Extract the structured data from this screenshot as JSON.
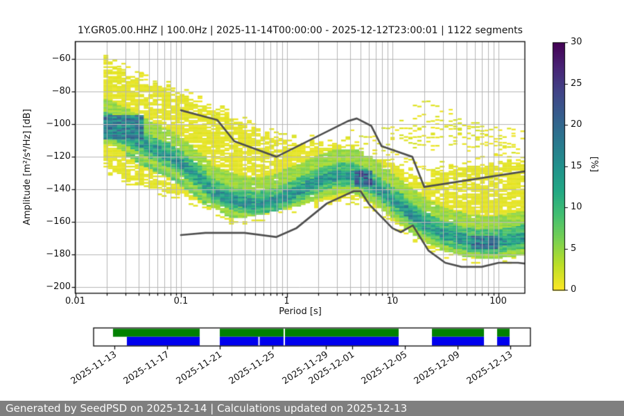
{
  "plot": {
    "title": "1Y.GR05.00.HHZ | 100.0Hz | 2025-11-14T00:00:00 - 2025-12-12T23:00:01 | 1122 segments",
    "xlabel": "Period [s]",
    "ylabel": "Amplitude [m²/s⁴/Hz] [dB]",
    "x_tick_labels": [
      "0.01",
      "0.1",
      "1",
      "10",
      "100"
    ],
    "y_tick_labels": [
      "−60",
      "−80",
      "−100",
      "−120",
      "−140",
      "−160",
      "−180",
      "−200"
    ],
    "colorbar_label": "[%]",
    "colorbar_tick_labels": [
      "0",
      "5",
      "10",
      "15",
      "20",
      "25",
      "30"
    ]
  },
  "footer": {
    "text": "Generated by SeedPSD on 2025-12-14 | Calculations updated on 2025-12-13",
    "bg_color": "#7f7f7f"
  },
  "chart_data": {
    "type": "heatmap",
    "title": "1Y.GR05.00.HHZ | 100.0Hz | 2025-11-14T00:00:00 - 2025-12-12T23:00:01 | 1122 segments",
    "xlabel": "Period [s]",
    "ylabel": "Amplitude [m²/s⁴/Hz] [dB]",
    "x_scale": "log",
    "xlim": [
      0.01,
      179
    ],
    "ylim": [
      -204,
      -49.4
    ],
    "xticks": [
      0.01,
      0.1,
      1,
      10,
      100
    ],
    "yticks": [
      -60,
      -80,
      -100,
      -120,
      -140,
      -160,
      -180,
      -200
    ],
    "grid": true,
    "grid_color": "#b5b5b5",
    "colorbar": {
      "label": "[%]",
      "range": [
        0,
        30
      ],
      "ticks": [
        0,
        5,
        10,
        15,
        20,
        25,
        30
      ],
      "colormap": "viridis_r",
      "stops": [
        [
          0.0,
          "#fde725"
        ],
        [
          0.1,
          "#bddf26"
        ],
        [
          0.2,
          "#7ad151"
        ],
        [
          0.3,
          "#44bf70"
        ],
        [
          0.4,
          "#22a884"
        ],
        [
          0.5,
          "#21918c"
        ],
        [
          0.6,
          "#2a788e"
        ],
        [
          0.7,
          "#355f8d"
        ],
        [
          0.8,
          "#414487"
        ],
        [
          0.9,
          "#482475"
        ],
        [
          1.0,
          "#440154"
        ]
      ]
    },
    "noise_models": {
      "color": "#4f4f4f",
      "high_points": [
        [
          0.1,
          -91.5
        ],
        [
          0.22,
          -97.4
        ],
        [
          0.32,
          -110.5
        ],
        [
          0.8,
          -120.0
        ],
        [
          3.8,
          -98.1
        ],
        [
          4.6,
          -96.5
        ],
        [
          6.3,
          -101.0
        ],
        [
          7.9,
          -113.5
        ],
        [
          15.4,
          -120.0
        ],
        [
          20.0,
          -138.5
        ],
        [
          354.8,
          -126.0
        ]
      ],
      "low_points": [
        [
          0.1,
          -168.0
        ],
        [
          0.17,
          -166.7
        ],
        [
          0.4,
          -166.7
        ],
        [
          0.8,
          -169.2
        ],
        [
          1.24,
          -163.7
        ],
        [
          2.4,
          -148.6
        ],
        [
          4.3,
          -141.1
        ],
        [
          5.0,
          -141.1
        ],
        [
          6.0,
          -149.0
        ],
        [
          10.0,
          -163.8
        ],
        [
          12.0,
          -166.2
        ],
        [
          15.6,
          -162.1
        ],
        [
          21.9,
          -177.5
        ],
        [
          31.6,
          -185.0
        ],
        [
          45.0,
          -187.5
        ],
        [
          70.0,
          -187.5
        ],
        [
          101.0,
          -185.0
        ],
        [
          154.0,
          -185.0
        ],
        [
          328.0,
          -187.5
        ]
      ]
    },
    "ppsd": {
      "periods": [
        0.02,
        0.03,
        0.05,
        0.08,
        0.1,
        0.15,
        0.2,
        0.3,
        0.5,
        0.8,
        1,
        1.5,
        2,
        3,
        4,
        5,
        6,
        8,
        10,
        15,
        20,
        25,
        30,
        50,
        80,
        100,
        150,
        179
      ],
      "top_db": [
        -60,
        -69,
        -75,
        -79,
        -81,
        -87,
        -91,
        -96,
        -103,
        -108,
        -110,
        -111,
        -112,
        -112.5,
        -114,
        -116,
        -119,
        -122.5,
        -124,
        -131,
        -137,
        -131,
        -128,
        -126,
        -124.5,
        -124,
        -124,
        -124
      ],
      "mode_db": [
        -100.5,
        -106,
        -114,
        -120,
        -124,
        -133,
        -141,
        -146,
        -149,
        -146.5,
        -143.5,
        -138.5,
        -134.5,
        -131.5,
        -131,
        -132.5,
        -135,
        -141,
        -146,
        -155,
        -161,
        -164,
        -167,
        -171,
        -172.5,
        -172,
        -170,
        -169
      ],
      "bottom_db": [
        -126,
        -133,
        -139,
        -142,
        -143,
        -148,
        -151,
        -158,
        -156.5,
        -153,
        -152,
        -149,
        -147,
        -146,
        -145.5,
        -146.5,
        -148.5,
        -153,
        -159,
        -167,
        -172,
        -175,
        -177.5,
        -181.5,
        -183,
        -182.5,
        -181,
        -180
      ],
      "base_pct": 1.05,
      "bands": [
        {
          "pct": 4.5,
          "above": 16,
          "below": 11.5
        },
        {
          "pct": 9,
          "above": 7.5,
          "below": 7
        },
        {
          "pct": 14,
          "above": 3,
          "below": 3.5
        }
      ],
      "secondary_ridge": {
        "pct": 7,
        "offset": -12,
        "halfwidth": 1.6,
        "p_range": [
          0.03,
          1.2
        ]
      },
      "cores": [
        {
          "pct": 20,
          "p_range": [
            4.2,
            6.5
          ],
          "top": -129,
          "bottom": -138
        },
        {
          "pct": 18,
          "p_range": [
            55,
            95
          ],
          "top": -168.5,
          "bottom": -176
        },
        {
          "pct": 17,
          "p_range": [
            0.019,
            0.045
          ],
          "top": -95,
          "bottom": -109
        }
      ],
      "streaks": [
        {
          "prob": 0.65,
          "points": [
            [
              7,
              -126
            ],
            [
              9,
              -112
            ],
            [
              12,
              -99
            ],
            [
              16,
              -90
            ],
            [
              21,
              -85.5
            ],
            [
              28,
              -90
            ],
            [
              40,
              -97
            ],
            [
              60,
              -103
            ],
            [
              100,
              -109
            ],
            [
              179,
              -114
            ]
          ]
        },
        {
          "prob": 0.5,
          "points": [
            [
              8,
              -127
            ],
            [
              11,
              -110
            ],
            [
              15,
              -99
            ],
            [
              22,
              -92
            ],
            [
              32,
              -99
            ],
            [
              55,
              -106
            ],
            [
              90,
              -111
            ],
            [
              179,
              -117
            ]
          ]
        },
        {
          "prob": 0.45,
          "points": [
            [
              9,
              -128
            ],
            [
              13,
              -112
            ],
            [
              18,
              -102
            ],
            [
              25,
              -97
            ],
            [
              38,
              -104
            ],
            [
              70,
              -111
            ],
            [
              179,
              -121
            ]
          ]
        },
        {
          "prob": 0.4,
          "points": [
            [
              10,
              -126
            ],
            [
              15,
              -114
            ],
            [
              22,
              -106
            ],
            [
              35,
              -110
            ],
            [
              65,
              -115
            ],
            [
              120,
              -119
            ],
            [
              179,
              -123
            ]
          ]
        },
        {
          "prob": 0.8,
          "points": [
            [
              8,
              -103
            ],
            [
              20,
              -102
            ],
            [
              50,
              -102
            ],
            [
              100,
              -103
            ],
            [
              179,
              -104
            ]
          ]
        },
        {
          "prob": 0.7,
          "points": [
            [
              10,
              -108
            ],
            [
              25,
              -107
            ],
            [
              60,
              -107
            ],
            [
              130,
              -108
            ],
            [
              179,
              -109
            ]
          ]
        },
        {
          "prob": 0.5,
          "points": [
            [
              12,
              -112
            ],
            [
              30,
              -112
            ],
            [
              80,
              -113
            ],
            [
              179,
              -115
            ]
          ]
        },
        {
          "prob": 0.4,
          "points": [
            [
              5,
              -107
            ],
            [
              7,
              -112
            ],
            [
              10,
              -118
            ],
            [
              15,
              -124
            ],
            [
              25,
              -129
            ],
            [
              50,
              -131
            ],
            [
              179,
              -134
            ]
          ]
        },
        {
          "prob": 0.45,
          "points": [
            [
              4,
              -103
            ],
            [
              6,
              -108
            ],
            [
              9,
              -115
            ],
            [
              14,
              -122
            ],
            [
              22,
              -128
            ],
            [
              40,
              -132
            ],
            [
              90,
              -131
            ],
            [
              179,
              -130
            ]
          ]
        },
        {
          "prob": 0.35,
          "points": [
            [
              0.02,
              -59
            ],
            [
              0.04,
              -68
            ],
            [
              0.08,
              -79
            ],
            [
              0.15,
              -89
            ],
            [
              0.3,
              -99
            ],
            [
              0.6,
              -107
            ]
          ]
        },
        {
          "prob": 0.3,
          "points": [
            [
              0.025,
              -64
            ],
            [
              0.05,
              -74
            ],
            [
              0.1,
              -84
            ],
            [
              0.2,
              -93
            ],
            [
              0.4,
              -102
            ]
          ]
        }
      ]
    },
    "timeline": {
      "green_color": "#008000",
      "blue_color": "#0000ee",
      "green_segments": [
        [
          0.0444,
          0.2429
        ],
        [
          0.2889,
          0.4349
        ],
        [
          0.4381,
          0.6984
        ],
        [
          0.7746,
          0.8937
        ],
        [
          0.9238,
          0.9524
        ]
      ],
      "blue_segments": [
        [
          0.0762,
          0.2429
        ],
        [
          0.2889,
          0.377
        ],
        [
          0.3802,
          0.4349
        ],
        [
          0.4381,
          0.6984
        ],
        [
          0.7746,
          0.8937
        ],
        [
          0.9238,
          0.9524
        ]
      ],
      "ticks": [
        {
          "f": 0.0476,
          "label": "2025-11-13"
        },
        {
          "f": 0.1683,
          "label": "2025-11-17"
        },
        {
          "f": 0.2889,
          "label": "2025-11-21"
        },
        {
          "f": 0.4095,
          "label": "2025-11-25"
        },
        {
          "f": 0.5317,
          "label": "2025-11-29"
        },
        {
          "f": 0.5921,
          "label": "2025-12-01"
        },
        {
          "f": 0.7127,
          "label": "2025-12-05"
        },
        {
          "f": 0.8333,
          "label": "2025-12-09"
        },
        {
          "f": 0.954,
          "label": "2025-12-13"
        }
      ]
    }
  }
}
